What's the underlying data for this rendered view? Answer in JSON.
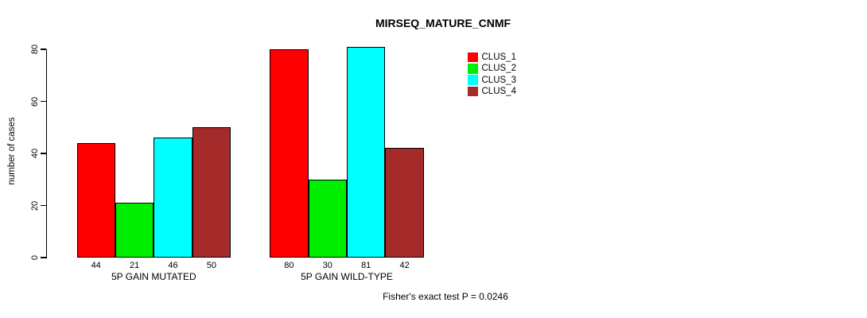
{
  "chart_data": {
    "type": "bar",
    "title": "MIRSEQ_MATURE_CNMF",
    "ylabel": "number of cases",
    "xlabel": "",
    "categories": [
      "5P GAIN MUTATED",
      "5P GAIN WILD-TYPE"
    ],
    "series": [
      {
        "name": "CLUS_1",
        "color": "#ff0000",
        "values": [
          44,
          80
        ]
      },
      {
        "name": "CLUS_2",
        "color": "#00ee00",
        "values": [
          21,
          30
        ]
      },
      {
        "name": "CLUS_3",
        "color": "#00ffff",
        "values": [
          46,
          81
        ]
      },
      {
        "name": "CLUS_4",
        "color": "#a52a2a",
        "values": [
          50,
          42
        ]
      }
    ],
    "ylim": [
      0,
      80
    ],
    "yticks": [
      0,
      20,
      40,
      60,
      80
    ],
    "bar_value_labels": [
      [
        44,
        21,
        46,
        50
      ],
      [
        80,
        30,
        81,
        42
      ]
    ],
    "legend_position": "top-right",
    "grid": false,
    "annotation": "Fisher's exact test P = 0.0246"
  }
}
